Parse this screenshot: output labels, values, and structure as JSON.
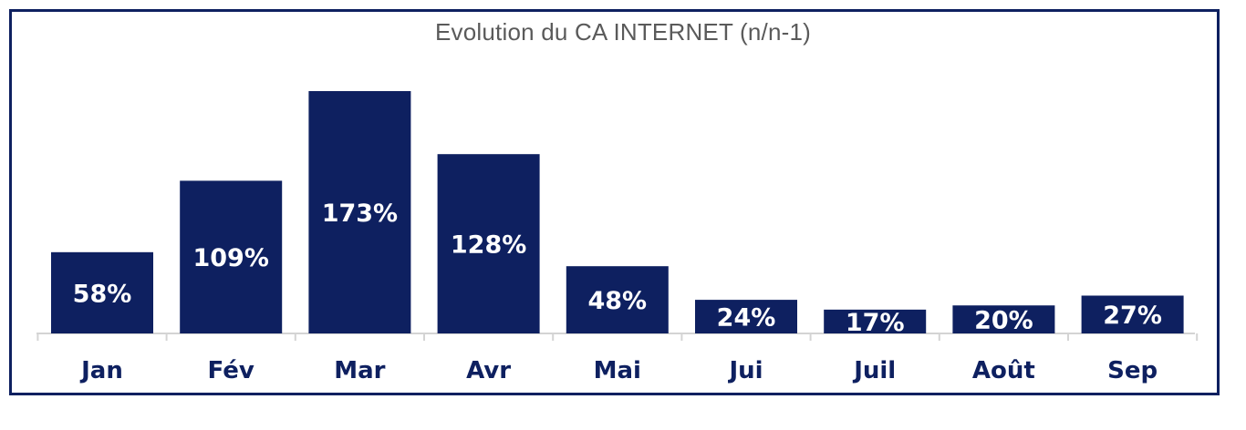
{
  "colors": {
    "bar": "#0e2060",
    "bar_label": "#ffffff",
    "axis_line": "#d4d4d4",
    "tick_label": "#0e2060",
    "title": "#5a5a5a",
    "frame": "#0e2060"
  },
  "chart_data": {
    "type": "bar",
    "title": "Evolution du CA INTERNET (n/n-1)",
    "xlabel": "",
    "ylabel": "",
    "categories": [
      "Jan",
      "Fév",
      "Mar",
      "Avr",
      "Mai",
      "Jui",
      "Juil",
      "Août",
      "Sep"
    ],
    "values": [
      58,
      109,
      173,
      128,
      48,
      24,
      17,
      20,
      27
    ],
    "data_labels": [
      "58%",
      "109%",
      "173%",
      "128%",
      "48%",
      "24%",
      "17%",
      "20%",
      "27%"
    ],
    "ylim": [
      0,
      173
    ],
    "grid": false,
    "legend": "none"
  }
}
